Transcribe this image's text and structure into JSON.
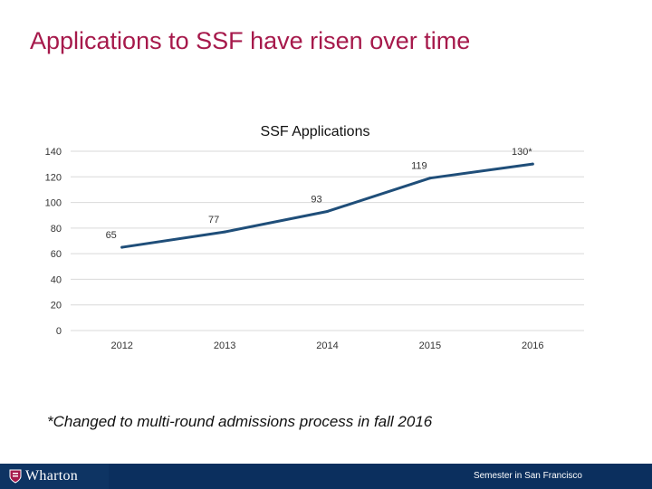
{
  "slide": {
    "title": "Applications to SSF have risen over time",
    "footnote": "*Changed to multi-round admissions process in fall 2016"
  },
  "footer": {
    "logo_text": "Wharton",
    "right_text": "Semester in San Francisco",
    "bg_color": "#0b2f5e"
  },
  "chart_data": {
    "type": "line",
    "title": "SSF Applications",
    "categories": [
      "2012",
      "2013",
      "2014",
      "2015",
      "2016"
    ],
    "series": [
      {
        "name": "SSF Applications",
        "values": [
          65,
          77,
          93,
          119,
          130
        ],
        "color": "#1f4e79"
      }
    ],
    "data_labels": [
      "65",
      "77",
      "93",
      "119",
      "130*"
    ],
    "ylim": [
      0,
      140
    ],
    "yticks": [
      0,
      20,
      40,
      60,
      80,
      100,
      120,
      140
    ],
    "xlabel": "",
    "ylabel": "",
    "grid": true
  }
}
